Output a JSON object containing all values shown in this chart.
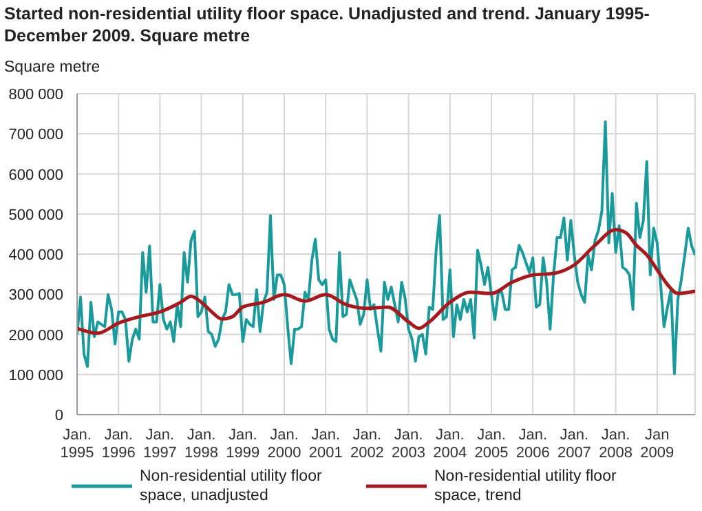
{
  "chart_data": {
    "type": "line",
    "title": "Started non-residential utility floor space. Unadjusted and trend. January 1995-December 2009. Square metre",
    "ylabel": "Square metre",
    "x": [
      "1995-01",
      "1995-02",
      "1995-03",
      "1995-04",
      "1995-05",
      "1995-06",
      "1995-07",
      "1995-08",
      "1995-09",
      "1995-10",
      "1995-11",
      "1995-12",
      "1996-01",
      "1996-02",
      "1996-03",
      "1996-04",
      "1996-05",
      "1996-06",
      "1996-07",
      "1996-08",
      "1996-09",
      "1996-10",
      "1996-11",
      "1996-12",
      "1997-01",
      "1997-02",
      "1997-03",
      "1997-04",
      "1997-05",
      "1997-06",
      "1997-07",
      "1997-08",
      "1997-09",
      "1997-10",
      "1997-11",
      "1997-12",
      "1998-01",
      "1998-02",
      "1998-03",
      "1998-04",
      "1998-05",
      "1998-06",
      "1998-07",
      "1998-08",
      "1998-09",
      "1998-10",
      "1998-11",
      "1998-12",
      "1999-01",
      "1999-02",
      "1999-03",
      "1999-04",
      "1999-05",
      "1999-06",
      "1999-07",
      "1999-08",
      "1999-09",
      "1999-10",
      "1999-11",
      "1999-12",
      "2000-01",
      "2000-02",
      "2000-03",
      "2000-04",
      "2000-05",
      "2000-06",
      "2000-07",
      "2000-08",
      "2000-09",
      "2000-10",
      "2000-11",
      "2000-12",
      "2001-01",
      "2001-02",
      "2001-03",
      "2001-04",
      "2001-05",
      "2001-06",
      "2001-07",
      "2001-08",
      "2001-09",
      "2001-10",
      "2001-11",
      "2001-12",
      "2002-01",
      "2002-02",
      "2002-03",
      "2002-04",
      "2002-05",
      "2002-06",
      "2002-07",
      "2002-08",
      "2002-09",
      "2002-10",
      "2002-11",
      "2002-12",
      "2003-01",
      "2003-02",
      "2003-03",
      "2003-04",
      "2003-05",
      "2003-06",
      "2003-07",
      "2003-08",
      "2003-09",
      "2003-10",
      "2003-11",
      "2003-12",
      "2004-01",
      "2004-02",
      "2004-03",
      "2004-04",
      "2004-05",
      "2004-06",
      "2004-07",
      "2004-08",
      "2004-09",
      "2004-10",
      "2004-11",
      "2004-12",
      "2005-01",
      "2005-02",
      "2005-03",
      "2005-04",
      "2005-05",
      "2005-06",
      "2005-07",
      "2005-08",
      "2005-09",
      "2005-10",
      "2005-11",
      "2005-12",
      "2006-01",
      "2006-02",
      "2006-03",
      "2006-04",
      "2006-05",
      "2006-06",
      "2006-07",
      "2006-08",
      "2006-09",
      "2006-10",
      "2006-11",
      "2006-12",
      "2007-01",
      "2007-02",
      "2007-03",
      "2007-04",
      "2007-05",
      "2007-06",
      "2007-07",
      "2007-08",
      "2007-09",
      "2007-10",
      "2007-11",
      "2007-12",
      "2008-01",
      "2008-02",
      "2008-03",
      "2008-04",
      "2008-05",
      "2008-06",
      "2008-07",
      "2008-08",
      "2008-09",
      "2008-10",
      "2008-11",
      "2008-12",
      "2009-01",
      "2009-02",
      "2009-03",
      "2009-04",
      "2009-05",
      "2009-06",
      "2009-07",
      "2009-08",
      "2009-09",
      "2009-10",
      "2009-11",
      "2009-12"
    ],
    "series": [
      {
        "name": "Non-residential utility floor space, unadjusted",
        "color": "#1a9a9a",
        "values": [
          200000,
          293000,
          151000,
          120000,
          280000,
          194000,
          231000,
          225000,
          219000,
          299000,
          262000,
          176000,
          256000,
          256000,
          237000,
          133000,
          188000,
          213000,
          188000,
          404000,
          305000,
          420000,
          231000,
          231000,
          324000,
          237000,
          213000,
          231000,
          182000,
          274000,
          219000,
          404000,
          330000,
          434000,
          457000,
          244000,
          256000,
          293000,
          207000,
          200000,
          170000,
          188000,
          237000,
          256000,
          324000,
          299000,
          299000,
          302000,
          182000,
          237000,
          225000,
          219000,
          311000,
          207000,
          280000,
          305000,
          496000,
          287000,
          348000,
          348000,
          324000,
          219000,
          127000,
          213000,
          213000,
          219000,
          305000,
          287000,
          385000,
          437000,
          336000,
          324000,
          336000,
          213000,
          188000,
          182000,
          404000,
          244000,
          250000,
          336000,
          311000,
          287000,
          225000,
          250000,
          336000,
          262000,
          274000,
          213000,
          158000,
          330000,
          287000,
          318000,
          274000,
          231000,
          330000,
          290000,
          213000,
          188000,
          133000,
          194000,
          200000,
          151000,
          268000,
          262000,
          410000,
          496000,
          237000,
          244000,
          361000,
          194000,
          274000,
          237000,
          287000,
          256000,
          287000,
          191000,
          410000,
          373000,
          324000,
          367000,
          299000,
          237000,
          305000,
          305000,
          262000,
          262000,
          361000,
          367000,
          422000,
          404000,
          379000,
          354000,
          391000,
          268000,
          274000,
          391000,
          330000,
          213000,
          348000,
          441000,
          441000,
          490000,
          385000,
          484000,
          398000,
          330000,
          299000,
          280000,
          398000,
          361000,
          434000,
          459000,
          508000,
          730000,
          428000,
          551000,
          404000,
          471000,
          367000,
          361000,
          348000,
          262000,
          527000,
          441000,
          484000,
          631000,
          348000,
          465000,
          428000,
          324000,
          219000,
          268000,
          311000,
          102000,
          287000,
          336000,
          398000,
          465000,
          420000,
          398000
        ]
      },
      {
        "name": "Non-residential utility floor space, trend",
        "color": "#a31a1f",
        "x": [
          "1995-01",
          "1995-07",
          "1996-01",
          "1996-07",
          "1997-01",
          "1997-07",
          "1997-10",
          "1998-01",
          "1998-04",
          "1998-07",
          "1998-10",
          "1999-01",
          "1999-07",
          "2000-01",
          "2000-07",
          "2001-01",
          "2001-07",
          "2002-01",
          "2002-07",
          "2003-01",
          "2003-04",
          "2003-07",
          "2004-01",
          "2004-07",
          "2005-01",
          "2005-07",
          "2006-01",
          "2006-07",
          "2007-01",
          "2007-07",
          "2008-01",
          "2008-04",
          "2008-07",
          "2008-10",
          "2009-01",
          "2009-04",
          "2009-07",
          "2009-12"
        ],
        "values": [
          215000,
          203000,
          228000,
          244000,
          256000,
          280000,
          295000,
          280000,
          256000,
          238000,
          244000,
          268000,
          280000,
          299000,
          283000,
          299000,
          274000,
          265000,
          268000,
          231000,
          215000,
          231000,
          280000,
          305000,
          302000,
          330000,
          348000,
          352000,
          373000,
          422000,
          461000,
          453000,
          422000,
          398000,
          361000,
          324000,
          302000,
          308000
        ]
      }
    ],
    "xlim": [
      "1995-01",
      "2009-12"
    ],
    "xticks": [
      {
        "value": "1995-01",
        "label": "Jan.\n1995"
      },
      {
        "value": "1996-01",
        "label": "Jan.\n1996"
      },
      {
        "value": "1997-01",
        "label": "Jan.\n1997"
      },
      {
        "value": "1998-01",
        "label": "Jan.\n1998"
      },
      {
        "value": "1999-01",
        "label": "Jan.\n1999"
      },
      {
        "value": "2000-01",
        "label": "Jan.\n2000"
      },
      {
        "value": "2001-01",
        "label": "Jan.\n2001"
      },
      {
        "value": "2002-01",
        "label": "Jan.\n2002"
      },
      {
        "value": "2003-01",
        "label": "Jan.\n2003"
      },
      {
        "value": "2004-01",
        "label": "Jan.\n2004"
      },
      {
        "value": "2005-01",
        "label": "Jan.\n2005"
      },
      {
        "value": "2006-01",
        "label": "Jan.\n2006"
      },
      {
        "value": "2007-01",
        "label": "Jan.\n2007"
      },
      {
        "value": "2008-01",
        "label": "Jan.\n2008"
      },
      {
        "value": "2009-01",
        "label": "Jan\n2009"
      }
    ],
    "ylim": [
      0,
      800000
    ],
    "yticks": [
      0,
      {
        "value": 100000,
        "label": "100 000"
      },
      {
        "value": 200000,
        "label": "200 000"
      },
      {
        "value": 300000,
        "label": "300 000"
      },
      {
        "value": 400000,
        "label": "400 000"
      },
      {
        "value": 500000,
        "label": "500 000"
      },
      {
        "value": 600000,
        "label": "600 000"
      },
      {
        "value": 700000,
        "label": "700 000"
      },
      {
        "value": 800000,
        "label": "800 000"
      }
    ],
    "grid": true,
    "legend": "bottom"
  }
}
